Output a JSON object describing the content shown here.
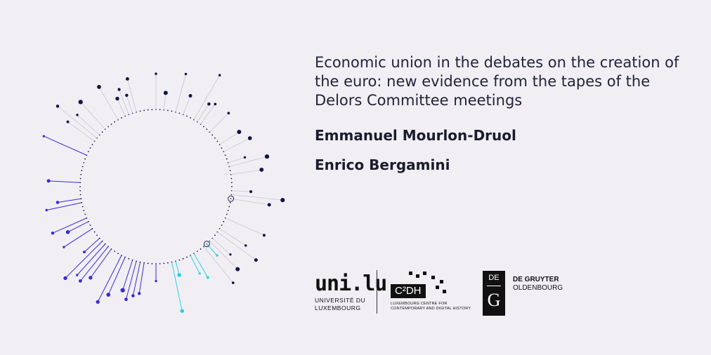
{
  "title": "Economic union in the debates on the creation of the euro: new evidence from the tapes of the Delors Committee meetings",
  "authors": [
    "Emmanuel Mourlon-Druol",
    "Enrico Bergamini"
  ],
  "logos": {
    "uni": {
      "wordmark": "uni.lu",
      "line1": "UNIVERSITÉ DU",
      "line2": "LUXEMBOURG"
    },
    "c2dh": {
      "name": "C²DH",
      "line1": "LUXEMBOURG CENTRE FOR",
      "line2": "CONTEMPORARY AND DIGITAL HISTORY"
    },
    "degruyter": {
      "mark_top": "DE",
      "mark_bottom": "G",
      "line1": "DE GRUYTER",
      "line2": "OLDENBOURG"
    }
  },
  "colors": {
    "background": "#f1eff4",
    "navy": "#141446",
    "violet": "#3a2bd6",
    "cyan": "#28d3e6",
    "faint": "#c8c6d2"
  }
}
